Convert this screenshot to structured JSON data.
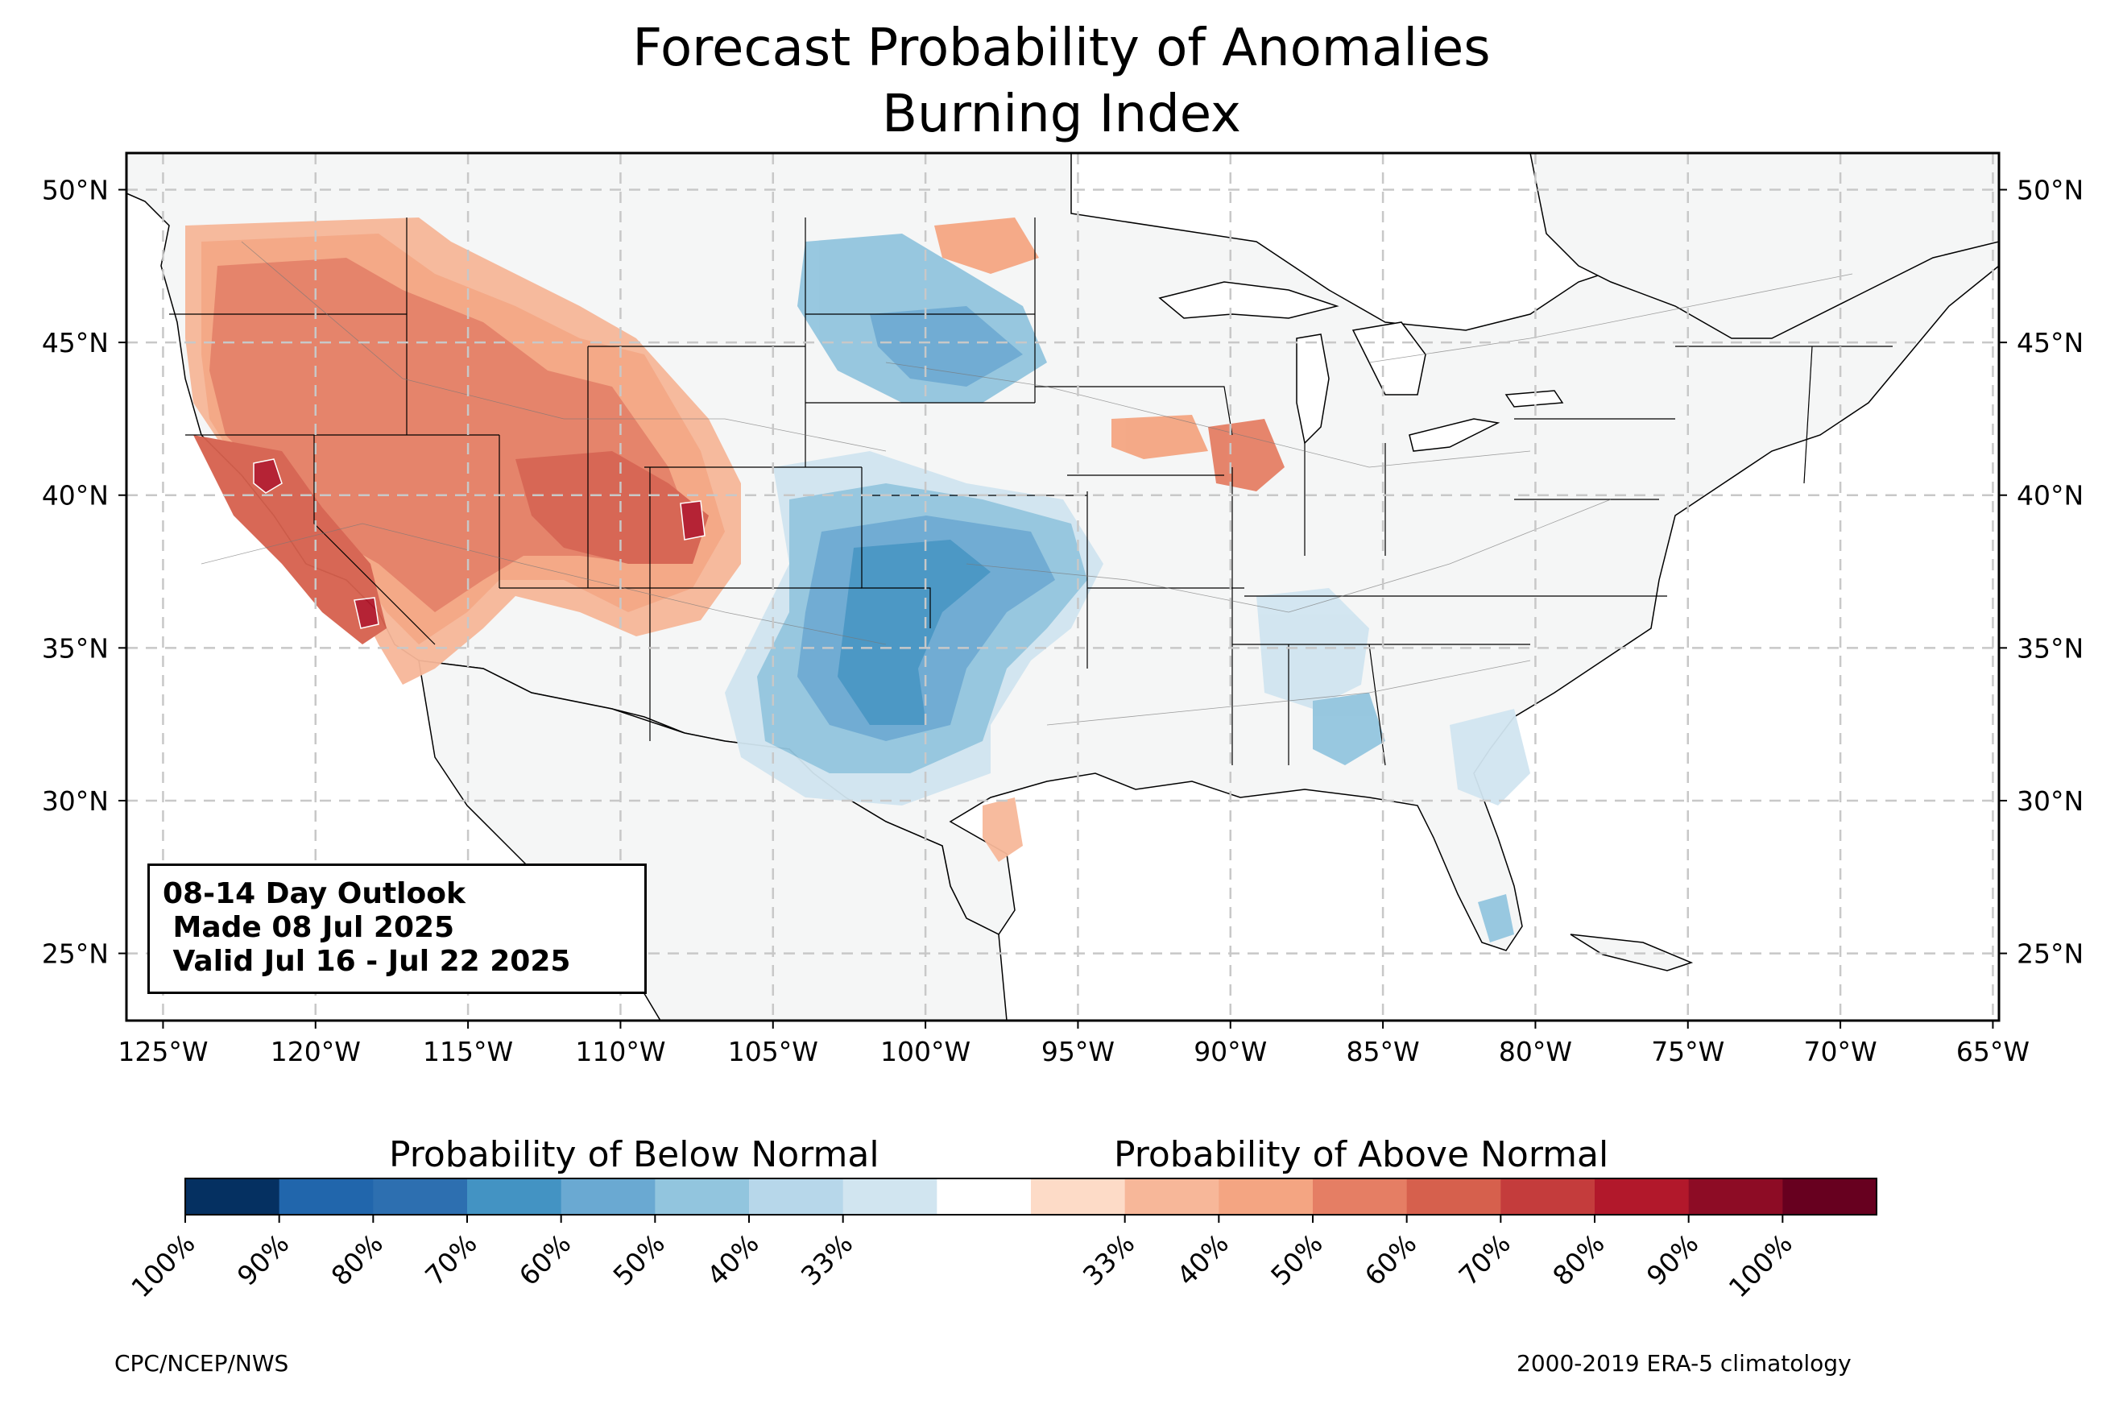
{
  "title": [
    "Forecast Probability of Anomalies",
    "Burning Index"
  ],
  "map": {
    "lat_ticks": [
      "50°N",
      "45°N",
      "40°N",
      "35°N",
      "30°N",
      "25°N"
    ],
    "lon_ticks": [
      "125°W",
      "120°W",
      "115°W",
      "110°W",
      "105°W",
      "100°W",
      "95°W",
      "90°W",
      "85°W",
      "80°W",
      "75°W",
      "70°W",
      "65°W"
    ],
    "lat_values": [
      50,
      45,
      40,
      35,
      30,
      25
    ],
    "lon_values": [
      -125,
      -120,
      -115,
      -110,
      -105,
      -100,
      -95,
      -90,
      -85,
      -80,
      -75,
      -70,
      -65
    ],
    "extent": {
      "lon": [
        -126.2,
        -64.8
      ],
      "lat": [
        22.8,
        51.2
      ]
    },
    "land_color": "#f5f6f6",
    "grid": "dashed",
    "anomaly_regions": [
      {
        "category": "above",
        "level": "40%",
        "color": "#f4a582",
        "description": "Pacific Northwest, Great Basin, Rockies, California"
      },
      {
        "category": "above",
        "level": "60%",
        "color": "#d6604d",
        "description": "Northern California, Nevada, Utah, Colorado"
      },
      {
        "category": "above",
        "level": "70%",
        "color": "#b2182b",
        "description": "Isolated cores in Northern California, Southern Nevada, Colorado"
      },
      {
        "category": "below",
        "level": "40%",
        "color": "#92c5de",
        "description": "Northern and Southern Plains, Texas"
      },
      {
        "category": "below",
        "level": "60%",
        "color": "#4393c3",
        "description": "Kansas, Oklahoma, Central Texas"
      },
      {
        "category": "above",
        "level": "40%",
        "color": "#f4a582",
        "description": "Illinois, Iowa, North Dakota"
      },
      {
        "category": "below",
        "level": "33%",
        "color": "#d1e5f0",
        "description": "Southeast, Florida"
      }
    ]
  },
  "outlook": {
    "line1": "08-14 Day Outlook",
    "line2": " Made 08 Jul 2025",
    "line3": " Valid Jul 16 - Jul 22 2025"
  },
  "colorbar": {
    "below_label": "Probability of Below Normal",
    "above_label": "Probability of Above Normal",
    "colors": [
      "#053061",
      "#2166ac",
      "#2d6fb0",
      "#4393c3",
      "#6aa9d2",
      "#92c5de",
      "#b7d7ea",
      "#d1e5f0",
      "#ffffff",
      "#fddbc7",
      "#f7b799",
      "#f4a582",
      "#e57e64",
      "#d6604d",
      "#c43c3c",
      "#b2182b",
      "#8d0c25",
      "#67001f"
    ],
    "tick_labels": [
      "100%",
      "90%",
      "80%",
      "70%",
      "60%",
      "50%",
      "40%",
      "33%",
      "33%",
      "40%",
      "50%",
      "60%",
      "70%",
      "80%",
      "90%",
      "100%"
    ]
  },
  "footer": {
    "left": "CPC/NCEP/NWS",
    "right": "2000-2019 ERA-5 climatology"
  }
}
